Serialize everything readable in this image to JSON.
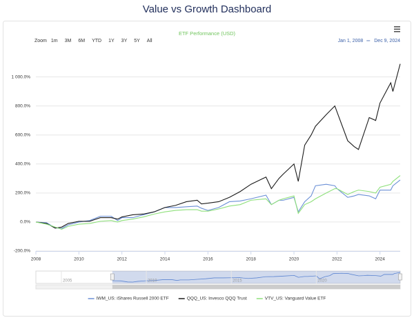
{
  "page_title": "Value vs Growth Dashboard",
  "chart_data": {
    "type": "line",
    "title": "ETF Performance (USD)",
    "zoom_label": "Zoom",
    "range_buttons": [
      "1m",
      "3M",
      "6M",
      "YTD",
      "1Y",
      "3Y",
      "5Y",
      "All"
    ],
    "range_start": "Jan 1, 2008",
    "range_end": "Dec 9, 2024",
    "x": [
      2008,
      2008.5,
      2008.9,
      2009.2,
      2009.5,
      2010,
      2010.5,
      2011,
      2011.5,
      2011.8,
      2012,
      2012.5,
      2013,
      2013.5,
      2014,
      2014.5,
      2015,
      2015.5,
      2015.7,
      2016,
      2016.5,
      2017,
      2017.5,
      2018,
      2018.7,
      2018.95,
      2019.3,
      2019.5,
      2020,
      2020.2,
      2020.5,
      2020.8,
      2021,
      2021.5,
      2021.9,
      2022,
      2022.5,
      2022.8,
      2023,
      2023.5,
      2023.8,
      2024,
      2024.5,
      2024.6,
      2024.94
    ],
    "series": [
      {
        "name": "IWM_US: iShares Russell 2000 ETF",
        "color": "#6a8fd6",
        "values": [
          0,
          -5,
          -40,
          -45,
          -20,
          0,
          10,
          40,
          40,
          10,
          30,
          30,
          50,
          70,
          100,
          100,
          105,
          110,
          95,
          80,
          100,
          140,
          145,
          160,
          185,
          120,
          150,
          150,
          170,
          70,
          140,
          180,
          250,
          260,
          250,
          230,
          170,
          180,
          190,
          180,
          160,
          220,
          220,
          250,
          290
        ]
      },
      {
        "name": "QQQ_US: Invesco QQQ Trust",
        "color": "#1a1a1a",
        "values": [
          0,
          -10,
          -42,
          -35,
          -10,
          5,
          5,
          30,
          30,
          20,
          35,
          50,
          55,
          70,
          100,
          115,
          140,
          150,
          125,
          130,
          140,
          170,
          210,
          260,
          310,
          230,
          300,
          330,
          400,
          280,
          530,
          600,
          660,
          740,
          800,
          760,
          560,
          520,
          500,
          720,
          700,
          820,
          960,
          900,
          1090
        ]
      },
      {
        "name": "VTV_US: Vanguard Value ETF",
        "color": "#8ee07a",
        "values": [
          0,
          -15,
          -35,
          -50,
          -30,
          -15,
          -10,
          5,
          10,
          0,
          10,
          20,
          35,
          55,
          70,
          80,
          85,
          85,
          75,
          75,
          90,
          110,
          120,
          150,
          160,
          120,
          150,
          160,
          180,
          60,
          120,
          140,
          160,
          200,
          230,
          230,
          190,
          210,
          220,
          210,
          200,
          240,
          260,
          280,
          320
        ]
      }
    ],
    "xlim": [
      2008,
      2024.94
    ],
    "xticks": [
      2008,
      2010,
      2012,
      2014,
      2016,
      2018,
      2020,
      2022,
      2024
    ],
    "ylim": [
      -200,
      1150
    ],
    "yticks": [
      {
        "value": -200,
        "label": "-200.0%"
      },
      {
        "value": 0,
        "label": "0.0%"
      },
      {
        "value": 200,
        "label": "200.0%"
      },
      {
        "value": 400,
        "label": "400.0%"
      },
      {
        "value": 600,
        "label": "600.0%"
      },
      {
        "value": 800,
        "label": "800.0%"
      },
      {
        "value": 1000,
        "label": "1 000.0%"
      }
    ],
    "grid": true,
    "navigator": {
      "xlim": [
        2003.5,
        2024.94
      ],
      "xticks": [
        2005,
        2010,
        2015,
        2020
      ]
    }
  }
}
